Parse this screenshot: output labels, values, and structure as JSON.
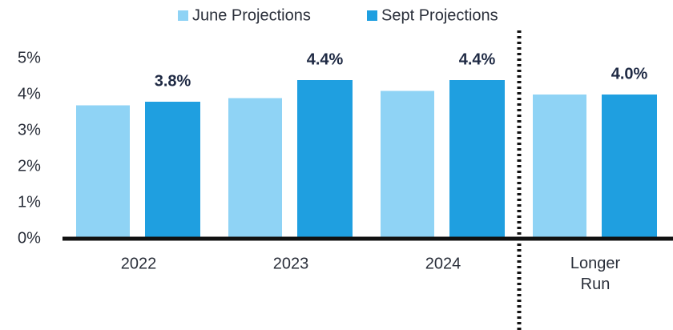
{
  "chart_data": {
    "type": "bar",
    "categories": [
      "2022",
      "2023",
      "2024",
      "Longer Run"
    ],
    "series": [
      {
        "name": "June Projections",
        "color": "#8fd3f5",
        "values": [
          3.7,
          3.9,
          4.1,
          4.0
        ]
      },
      {
        "name": "Sept Projections",
        "color": "#1f9fe0",
        "values": [
          3.8,
          4.4,
          4.4,
          4.0
        ],
        "value_labels": [
          "3.8%",
          "4.4%",
          "4.4%",
          "4.0%"
        ]
      }
    ],
    "ylim": [
      0,
      5
    ],
    "yticks": [
      {
        "value": 0,
        "label": "0%"
      },
      {
        "value": 1,
        "label": "1%"
      },
      {
        "value": 2,
        "label": "2%"
      },
      {
        "value": 3,
        "label": "3%"
      },
      {
        "value": 4,
        "label": "4%"
      },
      {
        "value": 5,
        "label": "5%"
      }
    ],
    "grid": false,
    "legend": "top"
  }
}
